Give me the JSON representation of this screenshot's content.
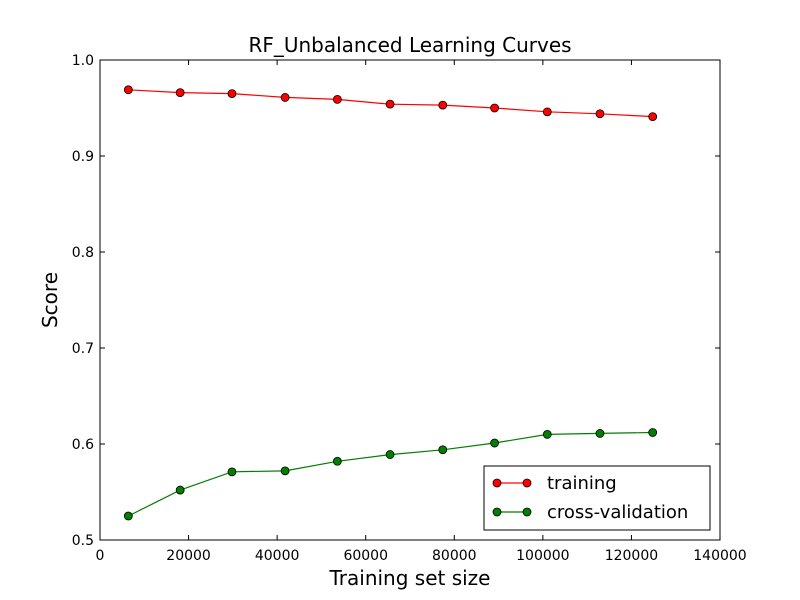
{
  "chart_data": {
    "type": "line",
    "title": "RF_Unbalanced Learning Curves",
    "xlabel": "Training set size",
    "ylabel": "Score",
    "xlim": [
      0,
      140000
    ],
    "ylim": [
      0.5,
      1.0
    ],
    "xticks": [
      0,
      20000,
      40000,
      60000,
      80000,
      100000,
      120000,
      140000
    ],
    "xtick_labels": [
      "0",
      "20000",
      "40000",
      "60000",
      "80000",
      "100000",
      "120000",
      "140000"
    ],
    "yticks": [
      0.5,
      0.6,
      0.7,
      0.8,
      0.9,
      1.0
    ],
    "ytick_labels": [
      "0.5",
      "0.6",
      "0.7",
      "0.8",
      "0.9",
      "1.0"
    ],
    "grid": false,
    "legend_position": "bottom-right",
    "x": [
      6400,
      18100,
      29800,
      41800,
      53600,
      65500,
      77400,
      89100,
      101000,
      112900,
      124800
    ],
    "series": [
      {
        "name": "training",
        "color": "#ff0000",
        "values": [
          0.969,
          0.966,
          0.965,
          0.961,
          0.959,
          0.954,
          0.953,
          0.95,
          0.946,
          0.944,
          0.941
        ]
      },
      {
        "name": "cross-validation",
        "color": "#007f00",
        "values": [
          0.525,
          0.552,
          0.571,
          0.572,
          0.582,
          0.589,
          0.594,
          0.601,
          0.61,
          0.611,
          0.612
        ]
      }
    ]
  }
}
